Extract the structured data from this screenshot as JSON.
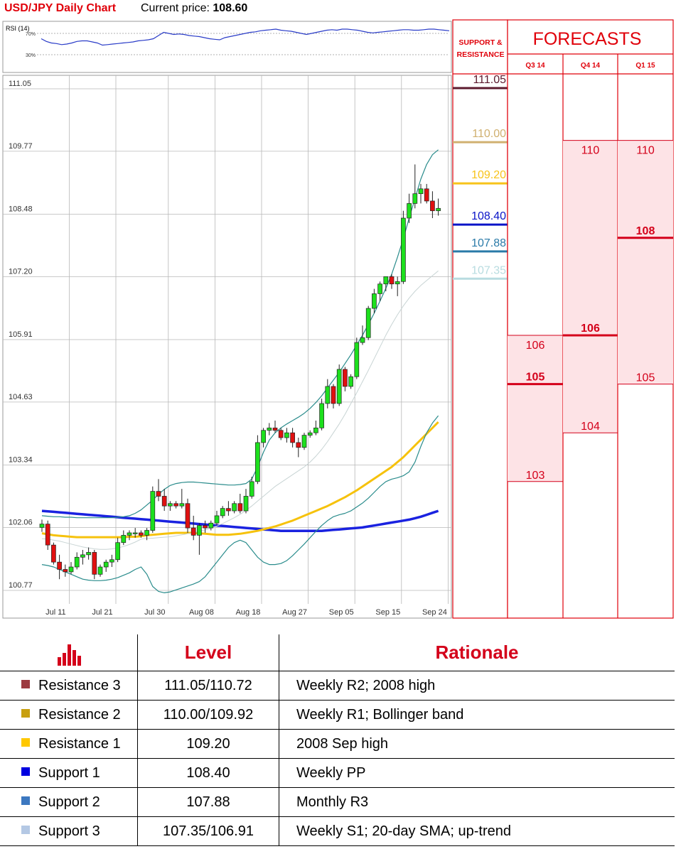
{
  "header": {
    "title": "USD/JPY Daily Chart",
    "price_label": "Current price:",
    "price_value": "108.60"
  },
  "rsi": {
    "label": "RSI (14)",
    "levels": [
      "70%",
      "30%"
    ],
    "level_values": [
      70,
      30
    ],
    "values": [
      60,
      55,
      52,
      51,
      49,
      50,
      52,
      55,
      56,
      56,
      54,
      52,
      48,
      49,
      50,
      51,
      52,
      53,
      54,
      56,
      57,
      58,
      60,
      66,
      72,
      70,
      68,
      69,
      68,
      66,
      65,
      64,
      62,
      60,
      59,
      58,
      62,
      64,
      66,
      68,
      70,
      72,
      73,
      75,
      76,
      77,
      78,
      76,
      75,
      74,
      72,
      70,
      68,
      70,
      72,
      74,
      76,
      77,
      76,
      78,
      78,
      77,
      76,
      74,
      72,
      71,
      72,
      73,
      74,
      75,
      76,
      77,
      77,
      76,
      76,
      77,
      78,
      78,
      77,
      76,
      75
    ]
  },
  "chart_data": {
    "type": "candlestick",
    "title": "USD/JPY Daily Chart",
    "ylim": [
      100.77,
      111.05
    ],
    "yticks": [
      "111.05",
      "109.77",
      "108.48",
      "107.20",
      "105.91",
      "104.63",
      "103.34",
      "102.06",
      "100.77"
    ],
    "ytick_values": [
      111.05,
      109.77,
      108.48,
      107.2,
      105.91,
      104.63,
      103.34,
      102.06,
      100.77
    ],
    "xticks": [
      "Jul 11",
      "Jul 21",
      "Jul 30",
      "Aug 08",
      "Aug 18",
      "Aug 27",
      "Sep 05",
      "Sep 15",
      "Sep 24"
    ],
    "xtick_index": [
      2,
      10,
      19,
      27,
      35,
      43,
      51,
      59,
      67
    ],
    "candles": [
      [
        102.06,
        102.22,
        101.97,
        102.13
      ],
      [
        102.13,
        102.2,
        101.6,
        101.7
      ],
      [
        101.7,
        101.75,
        101.3,
        101.35
      ],
      [
        101.35,
        101.5,
        101.0,
        101.2
      ],
      [
        101.2,
        101.3,
        101.05,
        101.15
      ],
      [
        101.15,
        101.35,
        101.1,
        101.25
      ],
      [
        101.25,
        101.55,
        101.2,
        101.45
      ],
      [
        101.45,
        101.6,
        101.3,
        101.5
      ],
      [
        101.5,
        101.65,
        101.4,
        101.55
      ],
      [
        101.55,
        101.6,
        101.0,
        101.1
      ],
      [
        101.1,
        101.3,
        101.05,
        101.25
      ],
      [
        101.25,
        101.4,
        101.15,
        101.35
      ],
      [
        101.35,
        101.5,
        101.25,
        101.4
      ],
      [
        101.4,
        101.85,
        101.35,
        101.75
      ],
      [
        101.75,
        102.0,
        101.7,
        101.9
      ],
      [
        101.9,
        102.0,
        101.8,
        101.95
      ],
      [
        101.95,
        102.05,
        101.85,
        101.95
      ],
      [
        101.95,
        102.0,
        101.85,
        101.9
      ],
      [
        101.9,
        102.05,
        101.8,
        102.0
      ],
      [
        102.0,
        102.9,
        101.95,
        102.8
      ],
      [
        102.8,
        103.05,
        102.6,
        102.7
      ],
      [
        102.7,
        102.85,
        102.4,
        102.5
      ],
      [
        102.5,
        102.6,
        102.4,
        102.55
      ],
      [
        102.55,
        102.6,
        102.45,
        102.5
      ],
      [
        102.5,
        102.85,
        102.45,
        102.55
      ],
      [
        102.55,
        102.65,
        101.95,
        102.05
      ],
      [
        102.05,
        102.3,
        101.8,
        101.9
      ],
      [
        101.9,
        102.15,
        101.5,
        102.1
      ],
      [
        102.1,
        102.2,
        101.95,
        102.05
      ],
      [
        102.05,
        102.2,
        102.0,
        102.15
      ],
      [
        102.15,
        102.4,
        102.1,
        102.3
      ],
      [
        102.3,
        102.5,
        102.25,
        102.45
      ],
      [
        102.45,
        102.6,
        102.3,
        102.4
      ],
      [
        102.4,
        102.6,
        102.35,
        102.55
      ],
      [
        102.55,
        102.75,
        102.35,
        102.4
      ],
      [
        102.4,
        102.85,
        102.35,
        102.7
      ],
      [
        102.7,
        103.1,
        102.65,
        103.0
      ],
      [
        103.0,
        103.95,
        102.95,
        103.8
      ],
      [
        103.8,
        104.1,
        103.7,
        104.05
      ],
      [
        104.05,
        104.2,
        103.95,
        104.1
      ],
      [
        104.1,
        104.25,
        104.0,
        104.05
      ],
      [
        104.05,
        104.1,
        103.85,
        103.9
      ],
      [
        103.9,
        104.1,
        103.8,
        104.0
      ],
      [
        104.0,
        104.1,
        103.7,
        103.8
      ],
      [
        103.8,
        103.9,
        103.5,
        103.7
      ],
      [
        103.7,
        104.0,
        103.65,
        103.95
      ],
      [
        103.95,
        104.05,
        103.9,
        104.0
      ],
      [
        104.0,
        104.25,
        103.95,
        104.1
      ],
      [
        104.1,
        104.7,
        104.05,
        104.6
      ],
      [
        104.6,
        105.1,
        104.5,
        104.95
      ],
      [
        104.95,
        105.0,
        104.5,
        104.6
      ],
      [
        104.6,
        105.4,
        104.55,
        105.3
      ],
      [
        105.3,
        105.35,
        104.85,
        104.95
      ],
      [
        104.95,
        105.2,
        104.9,
        105.15
      ],
      [
        105.15,
        105.95,
        105.1,
        105.85
      ],
      [
        105.85,
        106.2,
        105.8,
        105.95
      ],
      [
        105.95,
        106.6,
        105.9,
        106.55
      ],
      [
        106.55,
        106.95,
        106.45,
        106.85
      ],
      [
        106.85,
        107.1,
        106.7,
        107.05
      ],
      [
        107.05,
        107.2,
        106.9,
        107.2
      ],
      [
        107.2,
        107.25,
        106.95,
        107.05
      ],
      [
        107.05,
        107.2,
        106.8,
        107.1
      ],
      [
        107.1,
        108.55,
        107.05,
        108.4
      ],
      [
        108.4,
        108.9,
        108.3,
        108.7
      ],
      [
        108.7,
        109.5,
        108.6,
        108.9
      ],
      [
        108.9,
        109.1,
        108.7,
        109.0
      ],
      [
        109.0,
        109.1,
        108.7,
        108.75
      ],
      [
        108.75,
        108.95,
        108.4,
        108.55
      ],
      [
        108.55,
        108.8,
        108.45,
        108.6
      ]
    ],
    "series": [
      {
        "name": "",
        "color": "#1a22e0",
        "width": 3.5,
        "values": [
          102.4,
          102.39,
          102.38,
          102.37,
          102.36,
          102.35,
          102.34,
          102.33,
          102.32,
          102.31,
          102.3,
          102.29,
          102.28,
          102.27,
          102.26,
          102.25,
          102.24,
          102.23,
          102.22,
          102.21,
          102.2,
          102.19,
          102.18,
          102.17,
          102.16,
          102.15,
          102.14,
          102.13,
          102.12,
          102.11,
          102.1,
          102.09,
          102.08,
          102.07,
          102.06,
          102.05,
          102.04,
          102.03,
          102.02,
          102.01,
          102.0,
          101.99,
          101.99,
          101.99,
          101.99,
          101.99,
          101.99,
          101.99,
          101.99,
          102.0,
          102.01,
          102.02,
          102.03,
          102.04,
          102.05,
          102.06,
          102.08,
          102.1,
          102.12,
          102.14,
          102.16,
          102.18,
          102.2,
          102.22,
          102.25,
          102.28,
          102.32,
          102.36,
          102.4
        ]
      },
      {
        "name": "",
        "color": "#f6c20c",
        "width": 3,
        "values": [
          101.94,
          101.92,
          101.9,
          101.89,
          101.88,
          101.87,
          101.86,
          101.86,
          101.86,
          101.86,
          101.86,
          101.86,
          101.86,
          101.86,
          101.86,
          101.87,
          101.87,
          101.88,
          101.9,
          101.91,
          101.92,
          101.93,
          101.94,
          101.95,
          101.95,
          101.95,
          101.95,
          101.94,
          101.93,
          101.92,
          101.91,
          101.91,
          101.91,
          101.92,
          101.93,
          101.95,
          101.97,
          101.99,
          102.02,
          102.05,
          102.08,
          102.12,
          102.16,
          102.2,
          102.25,
          102.3,
          102.35,
          102.4,
          102.45,
          102.5,
          102.56,
          102.62,
          102.68,
          102.75,
          102.82,
          102.9,
          102.98,
          103.06,
          103.14,
          103.22,
          103.3,
          103.4,
          103.5,
          103.62,
          103.74,
          103.86,
          103.98,
          104.1,
          104.22
        ]
      },
      {
        "name": "",
        "color": "#2a8c8c",
        "width": 1.2,
        "values": [
          102.3,
          102.29,
          102.28,
          102.28,
          102.27,
          102.27,
          102.26,
          102.26,
          102.26,
          102.26,
          102.26,
          102.26,
          102.26,
          102.27,
          102.28,
          102.3,
          102.35,
          102.42,
          102.52,
          102.62,
          102.74,
          102.84,
          102.92,
          102.96,
          102.98,
          102.99,
          102.99,
          102.98,
          102.97,
          102.96,
          102.95,
          102.94,
          102.93,
          102.93,
          102.94,
          102.96,
          103.05,
          103.3,
          103.6,
          103.85,
          104.0,
          104.1,
          104.18,
          104.25,
          104.32,
          104.4,
          104.5,
          104.62,
          104.76,
          104.92,
          105.08,
          105.24,
          105.42,
          105.6,
          105.8,
          106.0,
          106.22,
          106.45,
          106.7,
          106.96,
          107.25,
          107.6,
          107.98,
          108.4,
          108.8,
          109.2,
          109.5,
          109.7,
          109.8
        ]
      },
      {
        "name": "",
        "color": "#2a8c8c",
        "width": 1.2,
        "values": [
          101.3,
          101.28,
          101.25,
          101.2,
          101.15,
          101.1,
          101.05,
          101.0,
          100.98,
          100.97,
          100.97,
          100.98,
          101.0,
          101.03,
          101.08,
          101.13,
          101.2,
          101.25,
          101.1,
          100.85,
          100.75,
          100.72,
          100.74,
          100.78,
          100.82,
          100.86,
          100.9,
          100.95,
          101.05,
          101.2,
          101.35,
          101.5,
          101.65,
          101.75,
          101.8,
          101.75,
          101.6,
          101.45,
          101.35,
          101.3,
          101.3,
          101.32,
          101.38,
          101.48,
          101.6,
          101.72,
          101.85,
          101.98,
          102.1,
          102.2,
          102.28,
          102.32,
          102.35,
          102.4,
          102.48,
          102.56,
          102.66,
          102.78,
          102.9,
          103.0,
          103.05,
          103.08,
          103.12,
          103.2,
          103.4,
          103.72,
          104.0,
          104.2,
          104.35
        ]
      },
      {
        "name": "",
        "color": "#c8d4d4",
        "width": 1,
        "values": [
          101.83,
          101.82,
          101.8,
          101.78,
          101.75,
          101.72,
          101.69,
          101.66,
          101.64,
          101.62,
          101.61,
          101.61,
          101.62,
          101.64,
          101.67,
          101.71,
          101.76,
          101.82,
          101.84,
          101.84,
          101.85,
          101.86,
          101.87,
          101.89,
          101.91,
          101.93,
          101.95,
          101.98,
          102.01,
          102.05,
          102.09,
          102.14,
          102.2,
          102.26,
          102.33,
          102.41,
          102.5,
          102.6,
          102.7,
          102.8,
          102.9,
          102.98,
          103.06,
          103.14,
          103.22,
          103.3,
          103.4,
          103.52,
          103.66,
          103.82,
          104.0,
          104.18,
          104.38,
          104.6,
          104.82,
          105.05,
          105.28,
          105.52,
          105.76,
          106.0,
          106.22,
          106.42,
          106.6,
          106.76,
          106.9,
          107.02,
          107.12,
          107.22,
          107.32
        ]
      }
    ]
  },
  "levels_panel": {
    "header_line1": "SUPPORT &",
    "header_line2": "RESISTANCE",
    "levels": [
      {
        "label": "111.05",
        "value": 111.05,
        "color": "#5c1a2e"
      },
      {
        "label": "110.00",
        "value": 110.0,
        "color": "#d0b070"
      },
      {
        "label": "109.20",
        "value": 109.2,
        "color": "#f7c31a"
      },
      {
        "label": "108.40",
        "value": 108.4,
        "color": "#0a14c8"
      },
      {
        "label": "107.88",
        "value": 107.88,
        "color": "#2a7aa8"
      },
      {
        "label": "107.35",
        "value": 107.35,
        "color": "#b8dce0"
      }
    ]
  },
  "forecasts": {
    "title": "FORECASTS",
    "columns": [
      {
        "label": "Q3 14",
        "box": [
          103,
          106
        ],
        "main": 105,
        "labels": [
          {
            "text": "106",
            "value": 106,
            "bold": false,
            "line": true
          },
          {
            "text": "105",
            "value": 105,
            "bold": true,
            "line": true
          },
          {
            "text": "103",
            "value": 103,
            "bold": false,
            "line": true
          }
        ]
      },
      {
        "label": "Q4 14",
        "box": [
          104,
          110
        ],
        "main": 106,
        "labels": [
          {
            "text": "110",
            "value": 110,
            "bold": false,
            "line": true
          },
          {
            "text": "106",
            "value": 106,
            "bold": true,
            "line": true
          },
          {
            "text": "104",
            "value": 104,
            "bold": false,
            "line": true
          }
        ]
      },
      {
        "label": "Q1 15",
        "box": [
          105,
          110
        ],
        "main": 108,
        "labels": [
          {
            "text": "110",
            "value": 110,
            "bold": false,
            "line": true
          },
          {
            "text": "108",
            "value": 108,
            "bold": true,
            "line": true
          },
          {
            "text": "105",
            "value": 105,
            "bold": false,
            "line": true
          }
        ]
      }
    ]
  },
  "level_table": {
    "header_icon": "bar-chart-icon",
    "header_level": "Level",
    "header_rationale": "Rationale",
    "rows": [
      {
        "name": "Resistance 3",
        "color": "#9c3a40",
        "level": "111.05/110.72",
        "rationale": "Weekly R2; 2008 high"
      },
      {
        "name": "Resistance 2",
        "color": "#c8a010",
        "level": "110.00/109.92",
        "rationale": "Weekly R1; Bollinger band"
      },
      {
        "name": "Resistance 1",
        "color": "#ffc800",
        "level": "109.20",
        "rationale": "2008 Sep high"
      },
      {
        "name": "Support 1",
        "color": "#0000e0",
        "level": "108.40",
        "rationale": "Weekly PP"
      },
      {
        "name": "Support 2",
        "color": "#3c78c0",
        "level": "107.88",
        "rationale": "Monthly R3"
      },
      {
        "name": "Support 3",
        "color": "#b4c8e4",
        "level": "107.35/106.91",
        "rationale": "Weekly S1; 20-day SMA; up-trend"
      }
    ]
  }
}
